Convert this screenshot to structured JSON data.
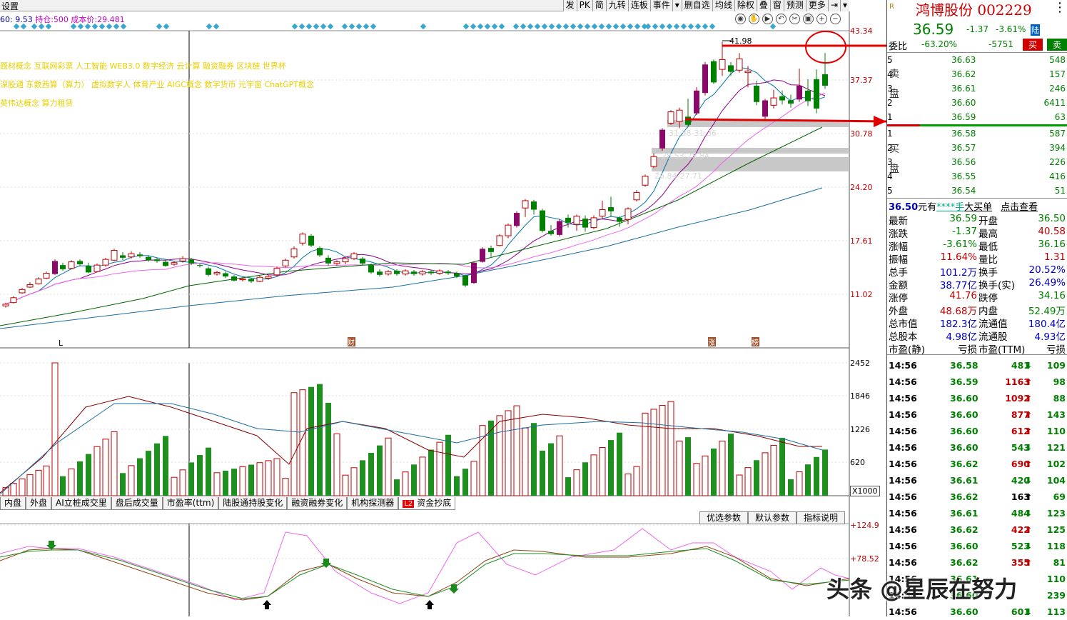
{
  "toolbar": {
    "settings": "设置",
    "buttons": [
      "发",
      "PK",
      "简",
      "九转",
      "连板",
      "事件",
      "▾",
      "删自选",
      "均线",
      "除权",
      "叠",
      "窗",
      "预测",
      "更多",
      "⇥",
      "▾"
    ]
  },
  "info": {
    "ma60": "60: 9.53",
    "position": "持仓:500 成本价:29.481"
  },
  "concepts": [
    "题材概念  互联网彩票  人工智能  WEB3.0  数字经济  云计算  融资融券  区块链  世界杯",
    "深股通  东数西算（算力）  虚拟数字人  体育产业  AIGC概念  数字货币  元宇宙  ChatGPT概念",
    "英伟达概念  算力租赁"
  ],
  "price_axis": [
    "43.34",
    "37.37",
    "30.78",
    "24.20",
    "17.61",
    "11.02"
  ],
  "volume_axis": [
    "2452",
    "1846",
    "1226",
    "620",
    "X1000"
  ],
  "osc_axis": [
    "+124.9",
    "+78.52"
  ],
  "chart_labels": {
    "high": "41.98",
    "zone1": "31.38-31.36",
    "zone2": "28.53-28.84",
    "zone3": "26.84-27.71",
    "mark_l": "L",
    "mark_cai": "财",
    "mark_zhang": "涨",
    "mark_bang": "榜"
  },
  "bottom_tabs": [
    "内盘",
    "外盘",
    "AI立桩成交里",
    "盘后成交量",
    "市盈率(ttm)",
    "陆股通持股变化",
    "融资融券变化",
    "机构探测器",
    "资金抄底"
  ],
  "l2_badge": "L2",
  "param_buttons": [
    "优选参数",
    "默认参数",
    "指标说明"
  ],
  "stock": {
    "badge": "R",
    "name": "鸿博股份",
    "code": "002229",
    "price": "36.59",
    "change": "-1.37",
    "pct": "-3.61%",
    "lu": "陆"
  },
  "weibi": {
    "label": "委比",
    "pct": "-63.20%",
    "diff": "-5751",
    "buy": "买",
    "sell": "卖"
  },
  "sell_levels": [
    {
      "lv": "5",
      "px": "36.63",
      "vol": "548"
    },
    {
      "lv": "4",
      "px": "36.62",
      "vol": "157"
    },
    {
      "lv": "3",
      "px": "36.61",
      "vol": "246"
    },
    {
      "lv": "2",
      "px": "36.60",
      "vol": "6411"
    },
    {
      "lv": "1",
      "px": "36.59",
      "vol": "63"
    }
  ],
  "buy_levels": [
    {
      "lv": "1",
      "px": "36.58",
      "vol": "587"
    },
    {
      "lv": "2",
      "px": "36.57",
      "vol": "394"
    },
    {
      "lv": "3",
      "px": "36.56",
      "vol": "226"
    },
    {
      "lv": "4",
      "px": "36.55",
      "vol": "416"
    },
    {
      "lv": "5",
      "px": "36.54",
      "vol": "51"
    }
  ],
  "sell_label": [
    "卖",
    "盘"
  ],
  "buy_label": [
    "买",
    "盘"
  ],
  "big_order": {
    "price": "36.50",
    "unit": "元有",
    "hand": "****手",
    "type": "大买单",
    "link": "点击查看"
  },
  "stats": [
    {
      "k1": "最新",
      "v1": "36.59",
      "c1": "#008000",
      "k2": "开盘",
      "v2": "36.50",
      "c2": "#008000"
    },
    {
      "k1": "涨跌",
      "v1": "-1.37",
      "c1": "#008000",
      "k2": "最高",
      "v2": "40.58",
      "c2": "#c00000"
    },
    {
      "k1": "涨幅",
      "v1": "-3.61%",
      "c1": "#008000",
      "k2": "最低",
      "v2": "36.16",
      "c2": "#008000"
    },
    {
      "k1": "振幅",
      "v1": "11.64%",
      "c1": "#c00000",
      "k2": "量比",
      "v2": "1.31",
      "c2": "#c00000"
    },
    {
      "k1": "总手",
      "v1": "101.2万",
      "c1": "#0000c0",
      "k2": "换手",
      "v2": "20.52%",
      "c2": "#0000c0"
    },
    {
      "k1": "金额",
      "v1": "38.77亿",
      "c1": "#0000c0",
      "k2": "换手(实)",
      "v2": "26.49%",
      "c2": "#0000c0"
    },
    {
      "k1": "涨停",
      "v1": "41.76",
      "c1": "#c00000",
      "k2": "跌停",
      "v2": "34.16",
      "c2": "#008000"
    },
    {
      "k1": "外盘",
      "v1": "48.68万",
      "c1": "#c00000",
      "k2": "内盘",
      "v2": "52.49万",
      "c2": "#008000"
    },
    {
      "k1": "总市值",
      "v1": "182.3亿",
      "c1": "#0000c0",
      "k2": "流通值",
      "v2": "180.4亿",
      "c2": "#0000c0"
    },
    {
      "k1": "总股本",
      "v1": "4.98亿",
      "c1": "#0000c0",
      "k2": "流通股",
      "v2": "4.93亿",
      "c2": "#0000c0"
    },
    {
      "k1": "市盈(静)",
      "v1": "亏损",
      "c1": "#000",
      "k2": "市盈(TTM)",
      "v2": "亏损",
      "c2": "#000"
    }
  ],
  "ticks": [
    {
      "t": "14:56",
      "px": "36.58",
      "vol": "481",
      "dir": "down",
      "n": "109"
    },
    {
      "t": "14:56",
      "px": "36.59",
      "vol": "1163",
      "dir": "up",
      "n": "98"
    },
    {
      "t": "14:56",
      "px": "36.60",
      "vol": "1092",
      "dir": "up",
      "n": "88"
    },
    {
      "t": "14:56",
      "px": "36.60",
      "vol": "877",
      "dir": "up",
      "n": "143"
    },
    {
      "t": "14:56",
      "px": "36.60",
      "vol": "612",
      "dir": "up",
      "n": "110"
    },
    {
      "t": "14:56",
      "px": "36.60",
      "vol": "543",
      "dir": "down",
      "n": "121"
    },
    {
      "t": "14:56",
      "px": "36.62",
      "vol": "690",
      "dir": "up",
      "n": "102"
    },
    {
      "t": "14:56",
      "px": "36.61",
      "vol": "420",
      "dir": "down",
      "n": "104"
    },
    {
      "t": "14:56",
      "px": "36.62",
      "vol": "163",
      "dir": "neutral",
      "n": "69"
    },
    {
      "t": "14:56",
      "px": "36.61",
      "vol": "484",
      "dir": "down",
      "n": "123"
    },
    {
      "t": "14:56",
      "px": "36.62",
      "vol": "422",
      "dir": "up",
      "n": "125"
    },
    {
      "t": "14:56",
      "px": "36.60",
      "vol": "523",
      "dir": "down",
      "n": "118"
    },
    {
      "t": "14:56",
      "px": "36.62",
      "vol": "355",
      "dir": "up",
      "n": "81"
    },
    {
      "t": "14:56",
      "px": "36.61",
      "vol": "",
      "dir": "",
      "n": "110"
    },
    {
      "t": "14:56",
      "px": "36.60",
      "vol": "",
      "dir": "",
      "n": "239"
    },
    {
      "t": "14:56",
      "px": "36.60",
      "vol": "601",
      "dir": "down",
      "n": "113"
    }
  ],
  "watermark": "头条 @星辰在努力"
}
